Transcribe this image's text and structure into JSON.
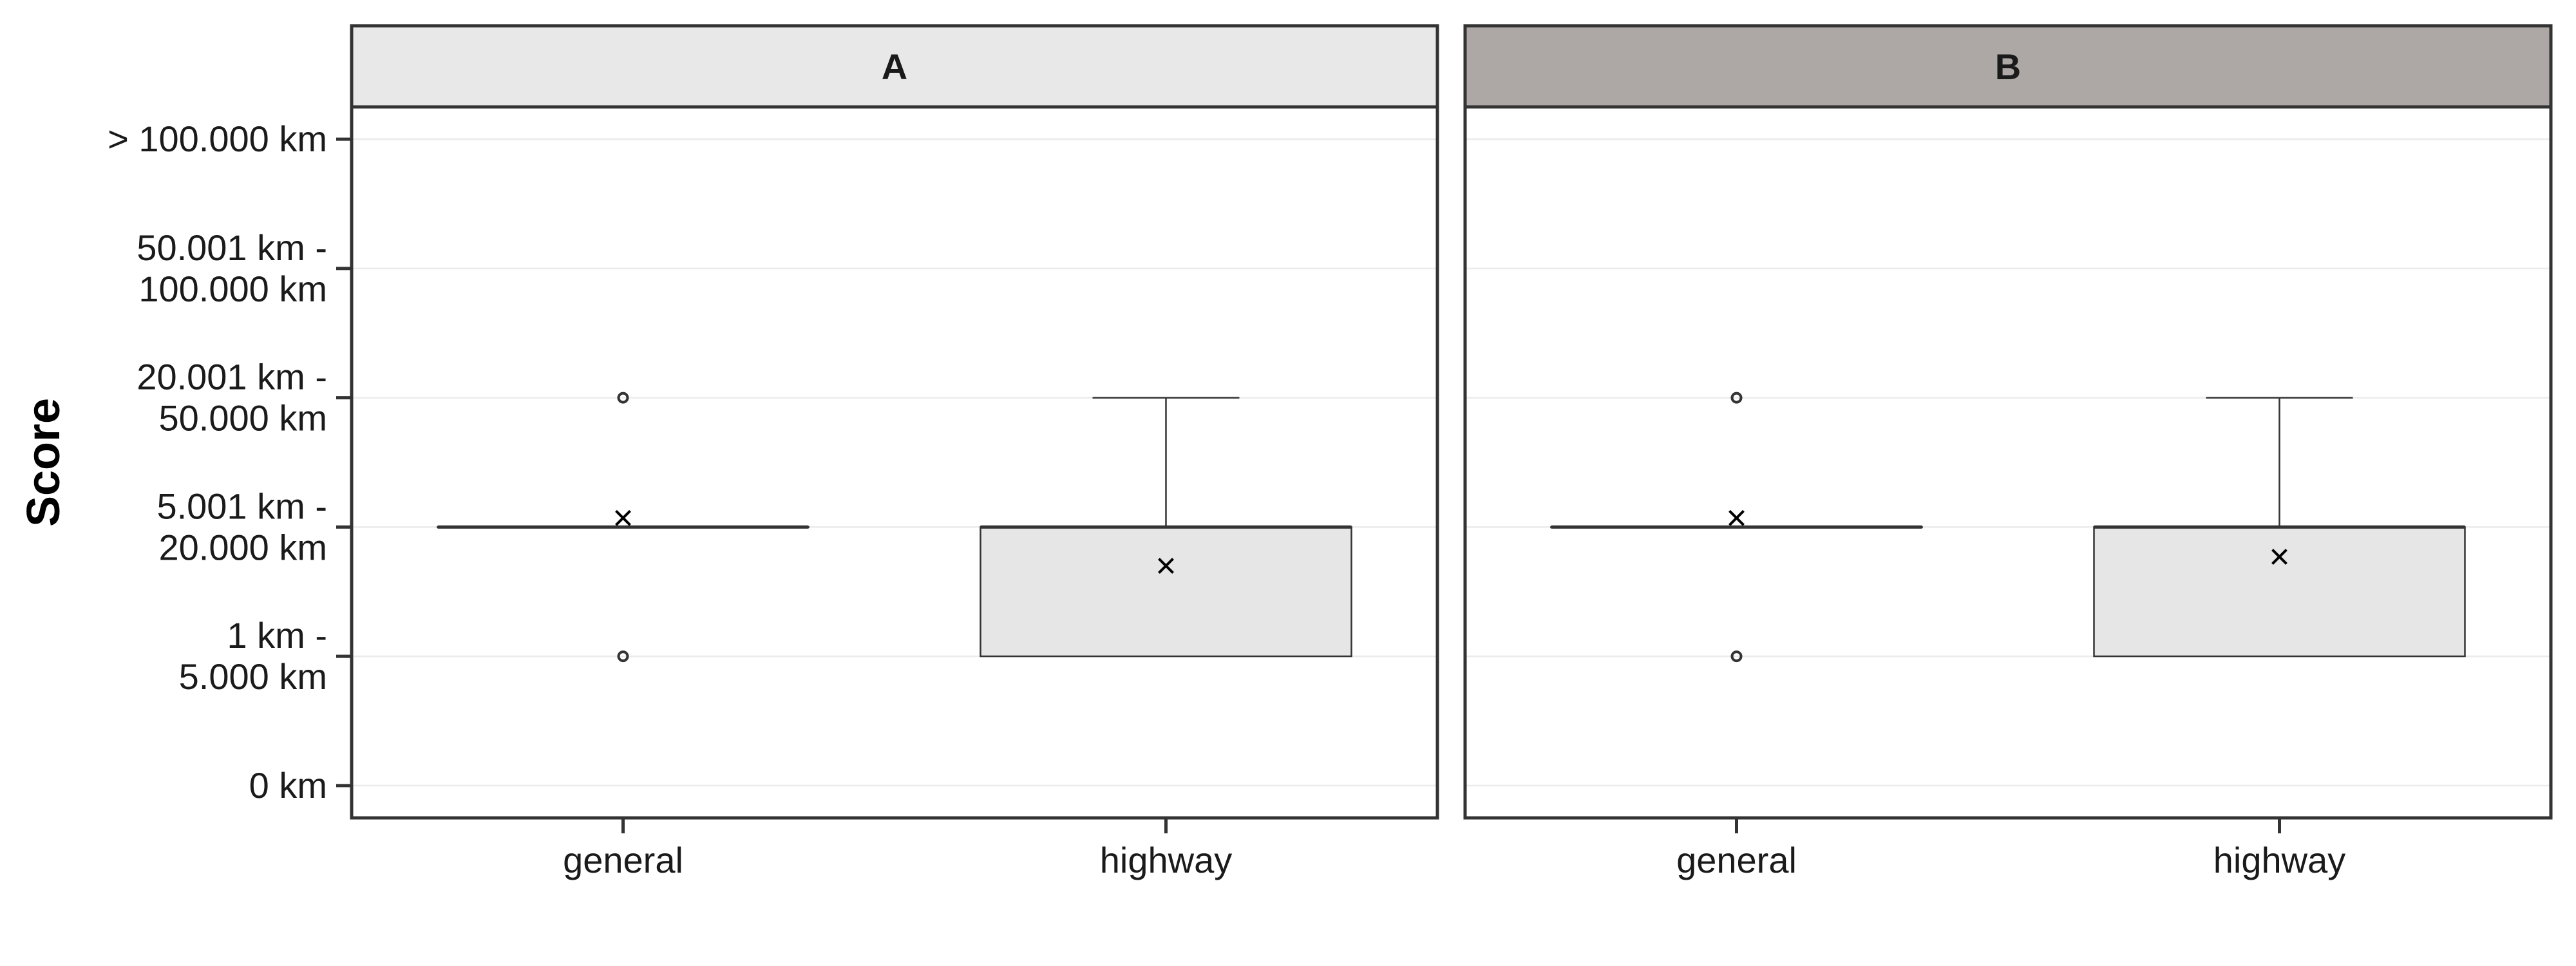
{
  "chart_data": {
    "type": "box",
    "ylabel": "Score",
    "y_levels": [
      "0 km",
      "1 km - 5.000 km",
      "5.001 km - 20.000 km",
      "20.001 km - 50.000 km",
      "50.001 km - 100.000 km",
      "> 100.000 km"
    ],
    "y_tick_lines": [
      [
        "0 km"
      ],
      [
        "1 km -",
        "5.000 km"
      ],
      [
        "5.001 km -",
        "20.000 km"
      ],
      [
        "20.001 km -",
        "50.000 km"
      ],
      [
        "50.001 km -",
        "100.000 km"
      ],
      [
        "> 100.000 km"
      ]
    ],
    "ylim": [
      -0.25,
      5.25
    ],
    "categories": [
      "general",
      "highway"
    ],
    "grid": true,
    "colors": {
      "box_fill": "#e6e6e6",
      "strip_a": "#e8e8e8",
      "strip_b": "#ada8a6",
      "grid": "#ebebeb",
      "line": "#333333"
    },
    "panels": [
      {
        "strip": "A",
        "boxes": [
          {
            "category": "general",
            "lower": 2,
            "q1": 2,
            "median": 2,
            "q3": 2,
            "upper": 2,
            "outliers": [
              1,
              3
            ],
            "mean": 2.07
          },
          {
            "category": "highway",
            "lower": 1,
            "q1": 1,
            "median": 2,
            "q3": 2,
            "upper": 3,
            "outliers": [],
            "mean": 1.7
          }
        ]
      },
      {
        "strip": "B",
        "boxes": [
          {
            "category": "general",
            "lower": 2,
            "q1": 2,
            "median": 2,
            "q3": 2,
            "upper": 2,
            "outliers": [
              1,
              3
            ],
            "mean": 2.07
          },
          {
            "category": "highway",
            "lower": 1,
            "q1": 1,
            "median": 2,
            "q3": 2,
            "upper": 3,
            "outliers": [],
            "mean": 1.77
          }
        ]
      }
    ]
  }
}
